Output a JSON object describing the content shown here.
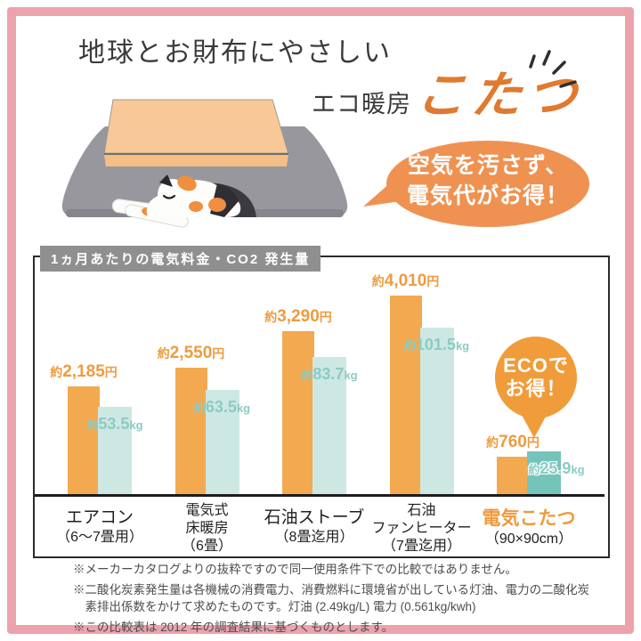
{
  "page": {
    "frame_color": "#eca3ac",
    "bg_color": "#ffffff"
  },
  "header": {
    "title_line1": "地球とお財布にやさしい",
    "subtitle_prefix": "エコ暖房",
    "subtitle_highlight": "こたつ",
    "highlight_color": "#df7a2e"
  },
  "speech_bubble": {
    "line1": "空気を汚さず、",
    "line2": "電気代がお得！",
    "color": "#ef9251"
  },
  "illustration": {
    "name": "kotatsu-with-sleeping-cat"
  },
  "chart": {
    "header_label": "1ヵ月あたりの電気料金・CO2 発生量"
  },
  "chart_data": {
    "type": "bar",
    "title": "1ヵ月あたりの電気料金・CO2 発生量",
    "categories": [
      [
        "エアコン",
        "（6～7畳用）"
      ],
      [
        "電気式",
        "床暖房",
        "（6畳）"
      ],
      [
        "石油ストーブ",
        "（8畳迄用）"
      ],
      [
        "石油",
        "ファンヒーター",
        "（7畳迄用）"
      ],
      [
        "電気こたつ",
        "（90×90cm）"
      ]
    ],
    "series": [
      {
        "name": "電気料金（円／月）",
        "unit": "円",
        "color": "#f3a950",
        "label_color": "#ef9b3f",
        "values": [
          2185,
          2550,
          3290,
          4010,
          760
        ],
        "labels": [
          "約2,185円",
          "約2,550円",
          "約3,290円",
          "約4,010円",
          "約760円"
        ]
      },
      {
        "name": "CO2発生量（kg／月）",
        "unit": "kg",
        "color": "#cde8e3",
        "highlight_color": "#74c4bc",
        "label_color": "#8bcbc4",
        "values": [
          53.5,
          63.5,
          83.7,
          101.5,
          25.9
        ],
        "labels": [
          "約53.5kg",
          "約63.5kg",
          "約83.7kg",
          "約101.5kg",
          "約25.9kg"
        ]
      }
    ],
    "highlight_index": 4,
    "category_highlight_color": "#ef9a3e",
    "legend_position": "none",
    "grid": false,
    "baseline": 0
  },
  "eco_badge": {
    "line1": "ECOで",
    "line2": "お得！",
    "color": "#f09c3a"
  },
  "footnotes": [
    "※メーカーカタログよりの抜粋ですので同一使用条件下での比較ではありません。",
    "※二酸化炭素発生量は各機械の消費電力、消費燃料に環境省が出している灯油、電力の二酸化炭素排出係数をかけて求めたものです。灯油 (2.49kg/L) 電力 (0.561kg/kwh)",
    "※この比較表は 2012 年の調査結果に基づくものとします。"
  ]
}
